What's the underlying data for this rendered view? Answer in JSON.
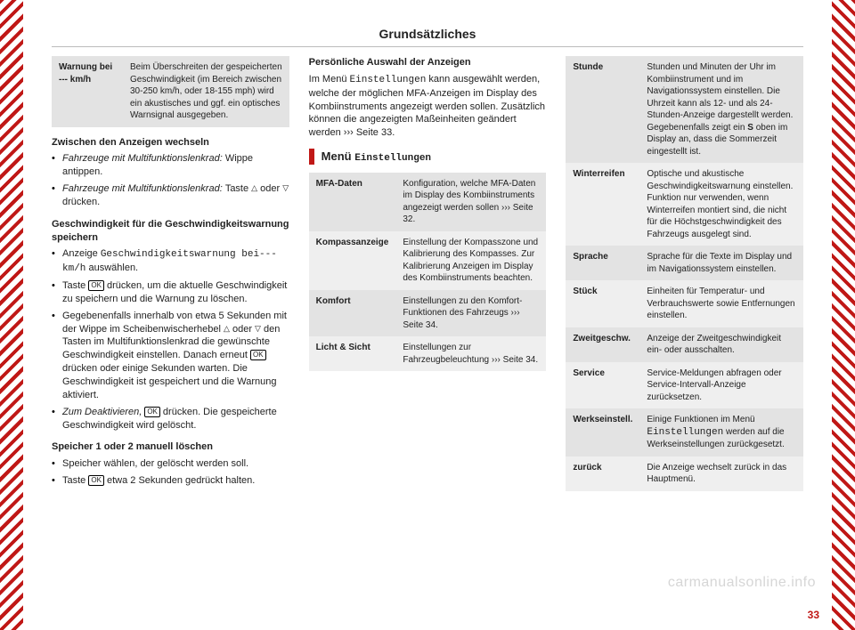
{
  "colors": {
    "accent": "#c01816",
    "row_a": "#e3e3e3",
    "row_b": "#efefef",
    "rule": "#bbbbbb",
    "text": "#222222",
    "watermark": "#d6d6d6"
  },
  "header": {
    "title": "Grundsätzliches"
  },
  "page_number": "33",
  "watermark": "carmanualsonline.info",
  "warn_table": {
    "rows": [
      {
        "k": "Warnung bei --- km/h",
        "v": "Beim Überschreiten der gespeicherten Geschwindigkeit (im Bereich zwischen 30-250 km/h, oder 18-155 mph) wird ein akustisches und ggf. ein optisches Warnsignal ausgegeben."
      }
    ]
  },
  "col1": {
    "h1": "Zwischen den Anzeigen wechseln",
    "b1a_pre": "Fahrzeuge mit Multifunktionslenkrad: ",
    "b1a": "Wippe antippen.",
    "b1b_pre": "Fahrzeuge mit Multifunktionslenkrad: ",
    "b1b": "Taste ",
    "b1b_key1": "△",
    "b1b_mid": " oder ",
    "b1b_key2": "▽",
    "b1b_tail": " drücken.",
    "h2": "Geschwindigkeit für die Geschwindigkeitswarnung speichern",
    "b2a_pre": "Anzeige ",
    "b2a_code": "Geschwindigkeitswarnung bei--- km/h",
    "b2a_post": " auswählen.",
    "b2b_pre": "Taste ",
    "b2b_ok": "OK",
    "b2b_post": " drücken, um die aktuelle Geschwindigkeit zu speichern und die Warnung zu löschen.",
    "b2c": "Gegebenenfalls innerhalb von etwa 5 Sekunden mit der Wippe im Scheibenwischerhebel ",
    "b2c_k1": "△",
    "b2c_mid": " oder ",
    "b2c_k2": "▽",
    "b2c_tail": " den Tasten im Multifunktionslenkrad die gewünschte Geschwindigkeit einstellen. Danach erneut ",
    "b2c_ok": "OK",
    "b2c_end": " drücken oder einige Sekunden warten. Die Geschwindigkeit ist gespeichert und die Warnung aktiviert.",
    "b2d_pre": "Zum Deaktivieren, ",
    "b2d_ok": "OK",
    "b2d_post": " drücken. Die gespeicherte Geschwindigkeit wird gelöscht."
  },
  "col2": {
    "h1": "Speicher 1 oder 2 manuell löschen",
    "b1a": "Speicher wählen, der gelöscht werden soll.",
    "b1b_pre": "Taste ",
    "b1b_ok": "OK",
    "b1b_post": " etwa 2 Sekunden gedrückt halten.",
    "h2": "Persönliche Auswahl der Anzeigen",
    "p2a": "Im Menü ",
    "p2a_code": "Einstellungen",
    "p2a_tail": " kann ausgewählt werden, welche der möglichen MFA-Anzeigen im Display des Kombiinstruments angezeigt werden sollen. Zusätzlich können die angezeigten Maßeinheiten geändert werden ››› Seite 33.",
    "sec_title_pre": "Menü ",
    "sec_title_code": "Einstellungen"
  },
  "settings_table": {
    "rows": [
      {
        "k": "MFA-Daten",
        "v": "Konfiguration, welche MFA-Daten im Display des Kombiinstruments angezeigt werden sollen ››› Seite 32."
      },
      {
        "k": "Kompassanzeige",
        "v": "Einstellung der Kompasszone und Kalibrierung des Kompasses. Zur Kalibrierung Anzeigen im Display des Kombiinstruments beachten."
      },
      {
        "k": "Komfort",
        "v": "Einstellungen zu den Komfort-Funktionen des Fahrzeugs ››› Seite 34."
      },
      {
        "k": "Licht & Sicht",
        "v": "Einstellungen zur Fahrzeugbeleuchtung ››› Seite 34."
      }
    ]
  },
  "settings_table2": {
    "rows": [
      {
        "k": "Stunde",
        "v_pre": "Stunden und Minuten der Uhr im Kombiinstrument und im Navigationssystem einstellen. Die Uhrzeit kann als 12- und als 24-Stunden-Anzeige dargestellt werden. Gegebenenfalls zeigt ein ",
        "v_bold": "S",
        "v_post": " oben im Display an, dass die Sommerzeit eingestellt ist."
      },
      {
        "k": "Winterreifen",
        "v": "Optische und akustische Geschwindigkeitswarnung einstellen. Funktion nur verwenden, wenn Winterreifen montiert sind, die nicht für die Höchstgeschwindigkeit des Fahrzeugs ausgelegt sind."
      },
      {
        "k": "Sprache",
        "v": "Sprache für die Texte im Display und im Navigationssystem einstellen."
      },
      {
        "k": "Stück",
        "v": "Einheiten für Temperatur- und Verbrauchswerte sowie Entfernungen einstellen."
      },
      {
        "k": "Zweitgeschw.",
        "v": "Anzeige der Zweitgeschwindigkeit ein- oder ausschalten."
      },
      {
        "k": "Service",
        "v": "Service-Meldungen abfragen oder Service-Intervall-Anzeige zurücksetzen."
      },
      {
        "k": "Werkseinstell.",
        "v_pre": "Einige Funktionen im Menü ",
        "v_code": "Einstellungen",
        "v_post": " werden auf die Werkseinstellungen zurückgesetzt."
      },
      {
        "k": "zurück",
        "v": "Die Anzeige wechselt zurück in das Hauptmenü."
      }
    ]
  }
}
